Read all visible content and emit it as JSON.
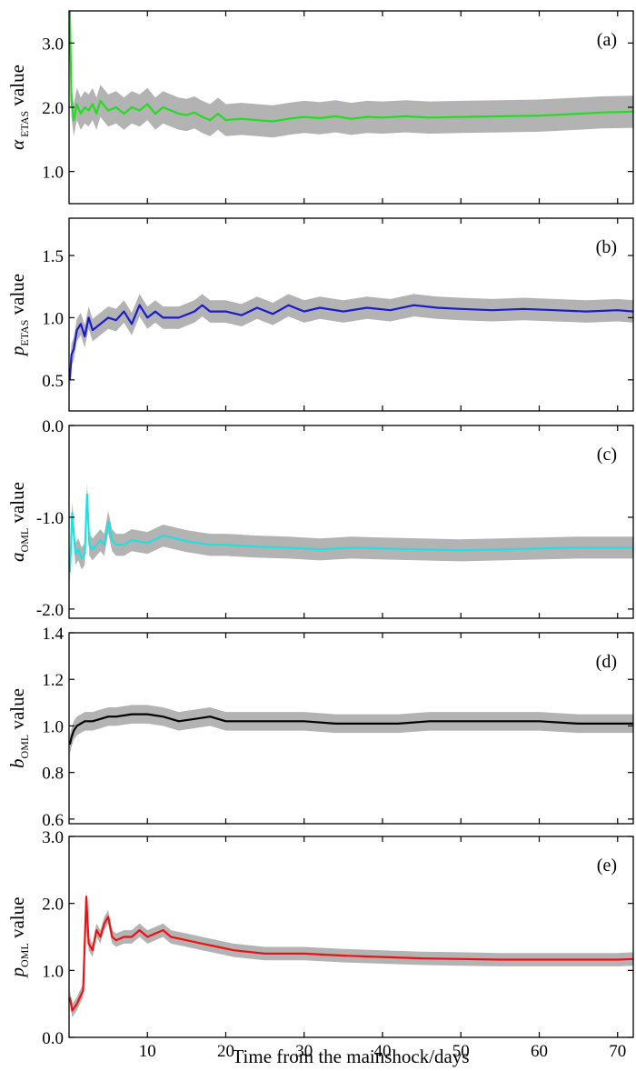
{
  "figure": {
    "xlabel": "Time from the mainshock/days"
  },
  "chart_data": [
    {
      "type": "line",
      "panel_label": "(a)",
      "ylabel": {
        "symbol": "α",
        "sub": " ETAS",
        "rest": " value"
      },
      "xlim": [
        0,
        72
      ],
      "ylim": [
        0.5,
        3.5
      ],
      "yticks": [
        {
          "v": 1.0,
          "t": "1.0"
        },
        {
          "v": 2.0,
          "t": "2.0"
        },
        {
          "v": 3.0,
          "t": "3.0"
        }
      ],
      "xticks": [
        {
          "v": 10,
          "t": "10"
        },
        {
          "v": 20,
          "t": "20"
        },
        {
          "v": 30,
          "t": "30"
        },
        {
          "v": 40,
          "t": "40"
        },
        {
          "v": 50,
          "t": "50"
        },
        {
          "v": 60,
          "t": "60"
        },
        {
          "v": 70,
          "t": "70"
        }
      ],
      "color": "#22dd22",
      "band_color": "#b3b3b3",
      "band_width": 0.25,
      "series": [
        {
          "x": [
            0.1,
            0.3,
            0.6,
            1,
            1.5,
            2,
            2.5,
            3,
            3.5,
            4,
            5,
            6,
            7,
            8,
            9,
            10,
            11,
            12,
            13,
            14,
            15,
            16,
            17,
            18,
            19,
            20,
            22,
            24,
            26,
            28,
            30,
            32,
            34,
            36,
            38,
            40,
            43,
            46,
            50,
            55,
            60,
            65,
            68,
            72
          ],
          "y": [
            3.5,
            2.1,
            1.8,
            2.05,
            1.9,
            2.0,
            1.95,
            2.05,
            1.9,
            2.1,
            1.95,
            2.0,
            1.9,
            2.0,
            1.95,
            2.05,
            1.9,
            2.0,
            1.95,
            1.9,
            1.88,
            1.92,
            1.85,
            1.8,
            1.9,
            1.8,
            1.82,
            1.8,
            1.78,
            1.82,
            1.85,
            1.83,
            1.86,
            1.82,
            1.85,
            1.84,
            1.86,
            1.84,
            1.85,
            1.86,
            1.87,
            1.9,
            1.92,
            1.93
          ]
        }
      ]
    },
    {
      "type": "line",
      "panel_label": "(b)",
      "ylabel": {
        "symbol": "p",
        "sub": "ETAS",
        "rest": " value"
      },
      "xlim": [
        0,
        72
      ],
      "ylim": [
        0.25,
        1.8
      ],
      "yticks": [
        {
          "v": 0.5,
          "t": "0.5"
        },
        {
          "v": 1.0,
          "t": "1.0"
        },
        {
          "v": 1.5,
          "t": "1.5"
        }
      ],
      "xticks": [
        {
          "v": 10,
          "t": "10"
        },
        {
          "v": 20,
          "t": "20"
        },
        {
          "v": 30,
          "t": "30"
        },
        {
          "v": 40,
          "t": "40"
        },
        {
          "v": 50,
          "t": "50"
        },
        {
          "v": 60,
          "t": "60"
        },
        {
          "v": 70,
          "t": "70"
        }
      ],
      "color": "#1a1acc",
      "band_color": "#b3b3b3",
      "band_width": 0.09,
      "series": [
        {
          "x": [
            0.1,
            0.3,
            0.6,
            1,
            1.5,
            2,
            2.5,
            3,
            4,
            5,
            6,
            7,
            8,
            9,
            10,
            11,
            12,
            14,
            16,
            17,
            18,
            20,
            22,
            24,
            26,
            28,
            30,
            32,
            35,
            38,
            41,
            44,
            47,
            50,
            54,
            58,
            62,
            66,
            70,
            72
          ],
          "y": [
            0.5,
            0.7,
            0.75,
            0.9,
            0.95,
            0.85,
            1.0,
            0.9,
            0.95,
            1.0,
            0.98,
            1.05,
            0.95,
            1.1,
            1.0,
            1.05,
            1.0,
            1.0,
            1.05,
            1.1,
            1.05,
            1.05,
            1.02,
            1.08,
            1.03,
            1.1,
            1.05,
            1.08,
            1.05,
            1.08,
            1.06,
            1.1,
            1.08,
            1.07,
            1.06,
            1.07,
            1.06,
            1.05,
            1.06,
            1.05
          ]
        }
      ]
    },
    {
      "type": "line",
      "panel_label": "(c)",
      "ylabel": {
        "symbol": "a",
        "sub": "OML",
        "rest": " value"
      },
      "xlim": [
        0,
        72
      ],
      "ylim": [
        -2.1,
        0
      ],
      "yticks": [
        {
          "v": 0.0,
          "t": "0.0"
        },
        {
          "v": -1.0,
          "t": "-1.0"
        },
        {
          "v": -2.0,
          "t": "-2.0"
        }
      ],
      "xticks": [
        {
          "v": 10,
          "t": "10"
        },
        {
          "v": 20,
          "t": "20"
        },
        {
          "v": 30,
          "t": "30"
        },
        {
          "v": 40,
          "t": "40"
        },
        {
          "v": 50,
          "t": "50"
        },
        {
          "v": 60,
          "t": "60"
        },
        {
          "v": 70,
          "t": "70"
        }
      ],
      "color": "#22e0e0",
      "band_color": "#b3b3b3",
      "band_width": 0.12,
      "series": [
        {
          "x": [
            0.1,
            0.4,
            0.8,
            1.2,
            1.6,
            2.0,
            2.3,
            2.6,
            3.0,
            3.5,
            4,
            4.5,
            5,
            5.5,
            6,
            7,
            8,
            10,
            12,
            15,
            18,
            20,
            24,
            28,
            32,
            36,
            40,
            45,
            50,
            55,
            60,
            65,
            70,
            72
          ],
          "y": [
            -1.6,
            -0.95,
            -1.4,
            -1.35,
            -1.45,
            -1.4,
            -0.75,
            -1.3,
            -1.35,
            -1.3,
            -1.25,
            -1.3,
            -1.05,
            -1.25,
            -1.3,
            -1.3,
            -1.25,
            -1.28,
            -1.2,
            -1.26,
            -1.3,
            -1.3,
            -1.32,
            -1.33,
            -1.35,
            -1.33,
            -1.34,
            -1.35,
            -1.36,
            -1.35,
            -1.34,
            -1.33,
            -1.33,
            -1.33
          ]
        }
      ]
    },
    {
      "type": "line",
      "panel_label": "(d)",
      "ylabel": {
        "symbol": "b",
        "sub": "OML",
        "rest": " value"
      },
      "xlim": [
        0,
        72
      ],
      "ylim": [
        0.58,
        1.4
      ],
      "yticks": [
        {
          "v": 0.6,
          "t": "0.6"
        },
        {
          "v": 0.8,
          "t": "0.8"
        },
        {
          "v": 1.0,
          "t": "1.0"
        },
        {
          "v": 1.2,
          "t": "1.2"
        },
        {
          "v": 1.4,
          "t": "1.4"
        }
      ],
      "xticks": [
        {
          "v": 10,
          "t": "10"
        },
        {
          "v": 20,
          "t": "20"
        },
        {
          "v": 30,
          "t": "30"
        },
        {
          "v": 40,
          "t": "40"
        },
        {
          "v": 50,
          "t": "50"
        },
        {
          "v": 60,
          "t": "60"
        },
        {
          "v": 70,
          "t": "70"
        }
      ],
      "color": "#000000",
      "band_color": "#b3b3b3",
      "band_width": 0.04,
      "series": [
        {
          "x": [
            0.1,
            0.3,
            0.6,
            1,
            2,
            3,
            4,
            5,
            6,
            8,
            10,
            12,
            14,
            16,
            18,
            20,
            22,
            26,
            30,
            34,
            38,
            42,
            46,
            50,
            55,
            60,
            65,
            70,
            72
          ],
          "y": [
            0.92,
            0.95,
            0.98,
            1.0,
            1.02,
            1.02,
            1.03,
            1.04,
            1.04,
            1.05,
            1.05,
            1.04,
            1.02,
            1.03,
            1.04,
            1.02,
            1.02,
            1.02,
            1.02,
            1.01,
            1.01,
            1.01,
            1.02,
            1.02,
            1.02,
            1.02,
            1.01,
            1.01,
            1.01
          ]
        }
      ]
    },
    {
      "type": "line",
      "panel_label": "(e)",
      "ylabel": {
        "symbol": "p",
        "sub": "OML",
        "rest": " value"
      },
      "xlim": [
        0,
        72
      ],
      "ylim": [
        0,
        3.0
      ],
      "yticks": [
        {
          "v": 0.0,
          "t": "0.0"
        },
        {
          "v": 1.0,
          "t": "1.0"
        },
        {
          "v": 2.0,
          "t": "2.0"
        },
        {
          "v": 3.0,
          "t": "3.0"
        }
      ],
      "xticks": [
        {
          "v": 10,
          "t": "10"
        },
        {
          "v": 20,
          "t": "20"
        },
        {
          "v": 30,
          "t": "30"
        },
        {
          "v": 40,
          "t": "40"
        },
        {
          "v": 50,
          "t": "50"
        },
        {
          "v": 60,
          "t": "60"
        },
        {
          "v": 70,
          "t": "70"
        }
      ],
      "color": "#ee1111",
      "band_color": "#b3b3b3",
      "band_width": 0.1,
      "series": [
        {
          "x": [
            0.1,
            0.4,
            1,
            1.8,
            2.2,
            2.5,
            3,
            3.5,
            4,
            4.5,
            5,
            5.5,
            6,
            7,
            8,
            9,
            10,
            11,
            12,
            13,
            15,
            17,
            19,
            21,
            25,
            30,
            35,
            40,
            45,
            50,
            55,
            60,
            65,
            70,
            72
          ],
          "y": [
            0.6,
            0.4,
            0.5,
            0.7,
            2.1,
            1.4,
            1.3,
            1.6,
            1.5,
            1.7,
            1.8,
            1.5,
            1.45,
            1.5,
            1.5,
            1.6,
            1.5,
            1.55,
            1.6,
            1.5,
            1.45,
            1.4,
            1.35,
            1.3,
            1.25,
            1.25,
            1.22,
            1.2,
            1.18,
            1.17,
            1.16,
            1.16,
            1.16,
            1.16,
            1.17
          ]
        }
      ]
    }
  ]
}
